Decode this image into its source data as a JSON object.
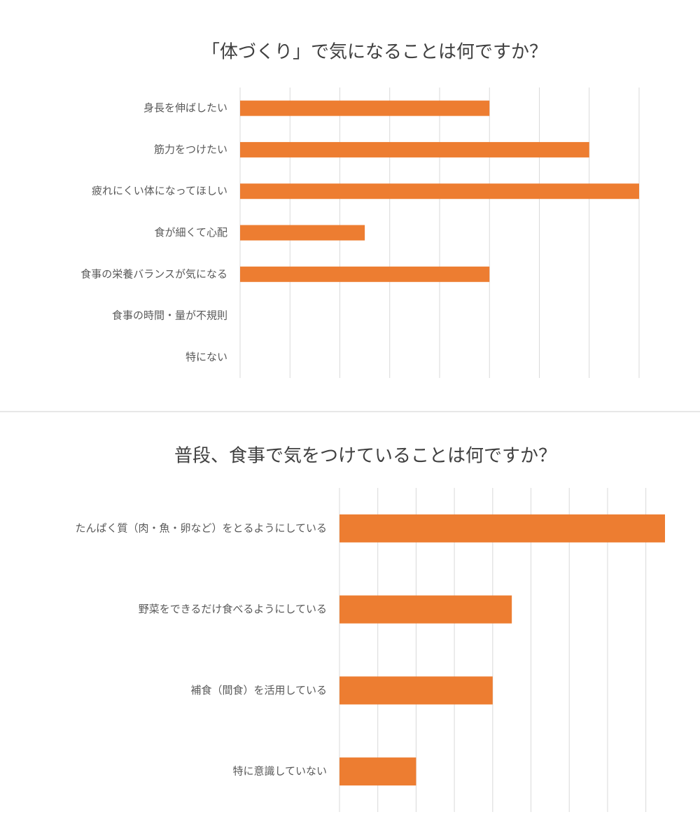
{
  "chart_data": [
    {
      "type": "bar",
      "orientation": "horizontal",
      "title": "「体づくり」で気になることは何ですか？",
      "categories": [
        "身長を伸ばしたい",
        "筋力をつけたい",
        "疲れにくい体になってほしい",
        "食が細くて心配",
        "食事の栄養バランスが気になる",
        "食事の時間・量が不規則",
        "特にない"
      ],
      "values": [
        5,
        7,
        8,
        2.5,
        5,
        0,
        0
      ],
      "color": "#ed7d31",
      "xlim": [
        0,
        8
      ],
      "xticks": [
        0,
        1,
        2,
        3,
        4,
        5,
        6,
        7,
        8
      ],
      "grid": true
    },
    {
      "type": "bar",
      "orientation": "horizontal",
      "title": "普段、食事で気をつけていることは何ですか？",
      "categories": [
        "たんぱく質（肉・魚・卵など）をとるようにしている",
        "野菜をできるだけ食べるようにしている",
        "補食（間食）を活用している",
        "特に意識していない"
      ],
      "values": [
        8.5,
        4.5,
        4,
        2
      ],
      "color": "#ed7d31",
      "xlim": [
        0,
        8.5
      ],
      "xticks": [
        0,
        1,
        2,
        3,
        4,
        5,
        6,
        7,
        8
      ],
      "grid": true
    }
  ]
}
